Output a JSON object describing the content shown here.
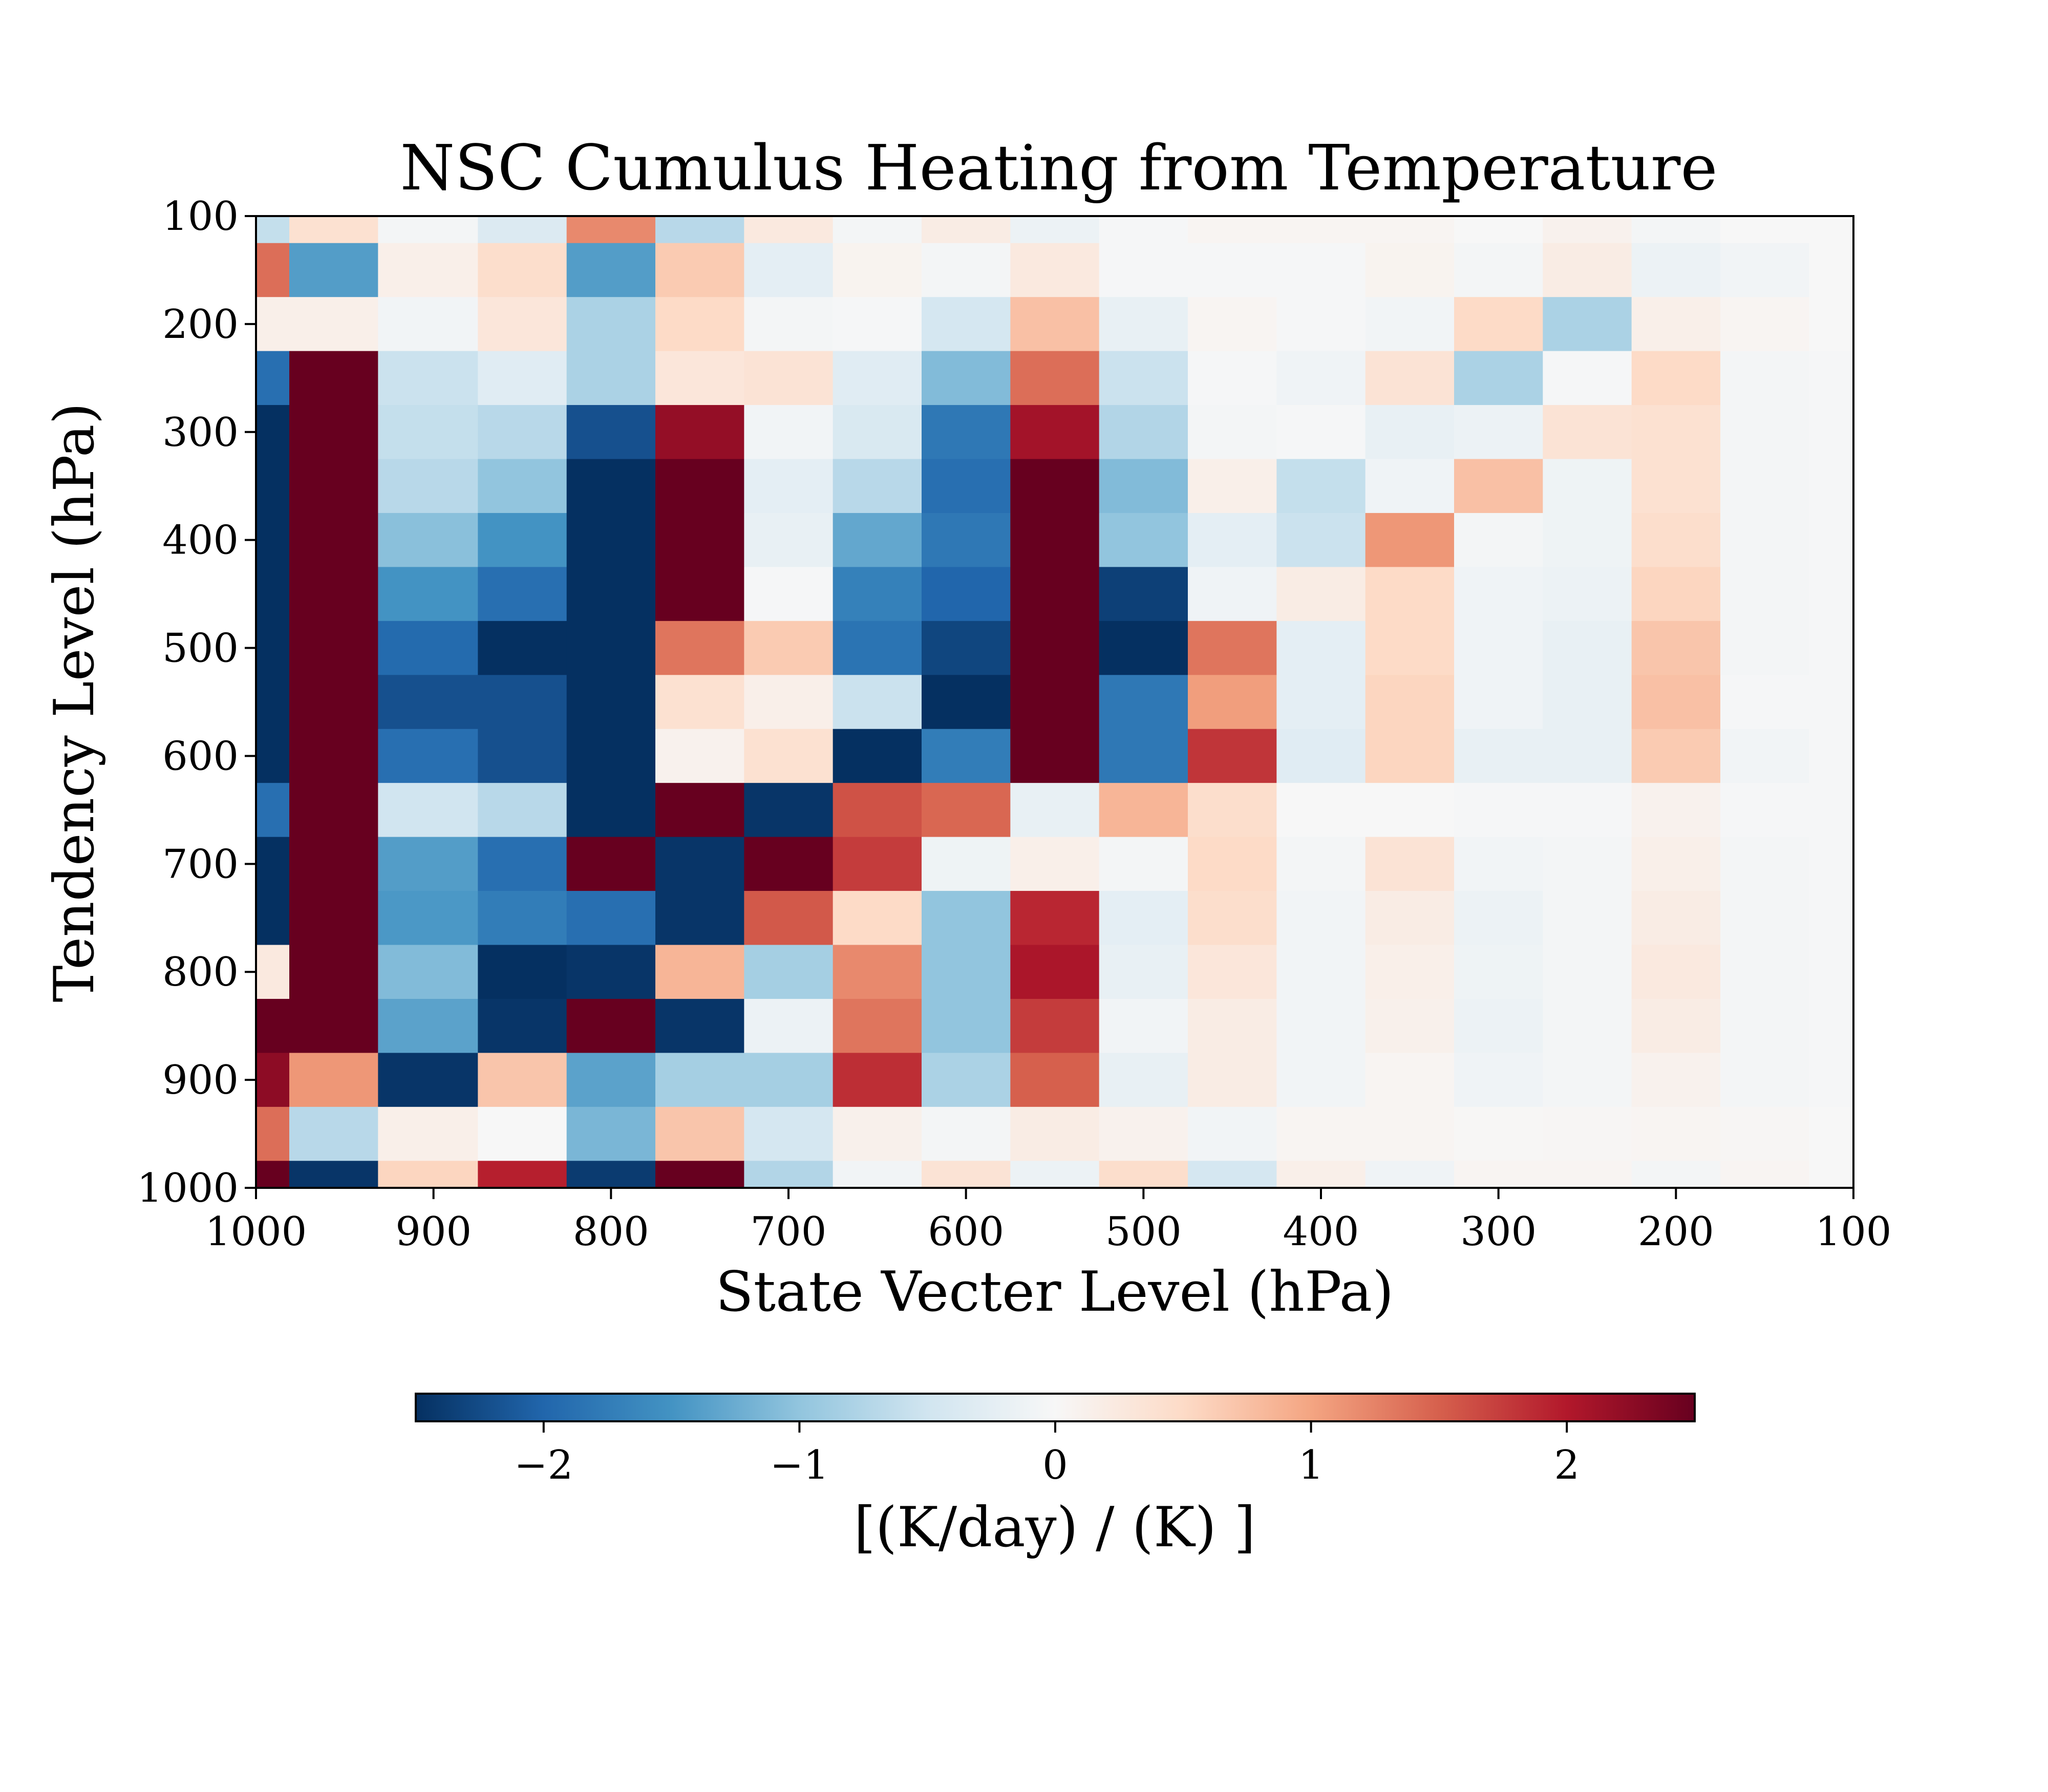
{
  "chart_data": {
    "type": "heatmap",
    "title": "NSC Cumulus Heating from Temperature",
    "xlabel": "State Vecter Level (hPa)",
    "ylabel": "Tendency Level (hPa)",
    "x_ticks": [
      "1000",
      "900",
      "800",
      "700",
      "600",
      "500",
      "400",
      "300",
      "200",
      "100"
    ],
    "y_ticks": [
      "100",
      "200",
      "300",
      "400",
      "500",
      "600",
      "700",
      "800",
      "900",
      "1000"
    ],
    "x_range": [
      1000,
      100
    ],
    "y_range": [
      100,
      1000
    ],
    "x_centers": [
      1000,
      962.5,
      900,
      850,
      800,
      750,
      700,
      650,
      600,
      550,
      500,
      450,
      400,
      350,
      300,
      250,
      200,
      150,
      100
    ],
    "y_centers": [
      100,
      150,
      200,
      250,
      300,
      350,
      400,
      450,
      500,
      550,
      600,
      650,
      700,
      750,
      800,
      850,
      900,
      950,
      1000
    ],
    "values": [
      [
        -0.6,
        0.4,
        -0.05,
        -0.35,
        1.2,
        -0.7,
        0.25,
        -0.05,
        0.2,
        -0.15,
        -0.02,
        0.05,
        0.05,
        0.05,
        0.0,
        0.1,
        -0.05,
        0.0,
        0.0
      ],
      [
        1.4,
        -1.4,
        0.15,
        0.45,
        -1.4,
        0.65,
        -0.25,
        0.08,
        -0.05,
        0.25,
        -0.02,
        -0.03,
        -0.03,
        0.08,
        -0.05,
        0.2,
        -0.15,
        -0.08,
        0.0
      ],
      [
        0.15,
        0.15,
        -0.08,
        0.3,
        -0.8,
        0.5,
        -0.05,
        -0.03,
        -0.45,
        0.75,
        -0.2,
        0.05,
        -0.03,
        -0.08,
        0.5,
        -0.8,
        0.15,
        0.05,
        0.0
      ],
      [
        -1.9,
        2.5,
        -0.55,
        -0.3,
        -0.8,
        0.3,
        0.35,
        -0.3,
        -1.1,
        1.4,
        -0.55,
        -0.03,
        -0.1,
        0.35,
        -0.8,
        -0.03,
        0.5,
        -0.05,
        -0.02
      ],
      [
        -2.5,
        2.5,
        -0.6,
        -0.7,
        -2.2,
        2.2,
        -0.08,
        -0.4,
        -1.8,
        2.1,
        -0.75,
        -0.05,
        -0.03,
        -0.2,
        -0.15,
        0.35,
        0.4,
        -0.05,
        -0.02
      ],
      [
        -2.5,
        2.5,
        -0.7,
        -1.0,
        -2.5,
        2.5,
        -0.25,
        -0.7,
        -1.9,
        2.5,
        -1.1,
        0.15,
        -0.6,
        -0.1,
        0.75,
        -0.12,
        0.4,
        -0.05,
        -0.02
      ],
      [
        -2.5,
        2.5,
        -1.05,
        -1.5,
        -2.5,
        2.5,
        -0.2,
        -1.3,
        -1.8,
        2.5,
        -1.0,
        -0.25,
        -0.55,
        1.1,
        -0.05,
        -0.12,
        0.45,
        -0.05,
        -0.02
      ],
      [
        -2.5,
        2.5,
        -1.5,
        -1.9,
        -2.5,
        2.5,
        -0.02,
        -1.7,
        -2.0,
        2.5,
        -2.35,
        -0.1,
        0.2,
        0.5,
        -0.1,
        -0.15,
        0.55,
        -0.05,
        -0.02
      ],
      [
        -2.5,
        2.5,
        -1.95,
        -2.5,
        -2.5,
        1.35,
        0.65,
        -1.85,
        -2.3,
        2.5,
        -2.5,
        1.35,
        -0.25,
        0.5,
        -0.1,
        -0.2,
        0.7,
        -0.05,
        -0.02
      ],
      [
        -2.5,
        2.5,
        -2.2,
        -2.2,
        -2.5,
        0.4,
        0.15,
        -0.55,
        -2.5,
        2.5,
        -1.8,
        1.05,
        -0.25,
        0.55,
        -0.1,
        -0.2,
        0.75,
        -0.03,
        -0.02
      ],
      [
        -2.5,
        2.5,
        -1.9,
        -2.2,
        -2.5,
        0.1,
        0.4,
        -2.5,
        -1.75,
        2.5,
        -1.8,
        1.8,
        -0.3,
        0.55,
        -0.2,
        -0.2,
        0.65,
        -0.08,
        -0.02
      ],
      [
        -1.9,
        2.5,
        -0.5,
        -0.7,
        -2.5,
        2.5,
        -2.45,
        1.6,
        1.45,
        -0.2,
        0.85,
        0.45,
        0.0,
        0.0,
        -0.03,
        -0.02,
        0.1,
        -0.03,
        -0.02
      ],
      [
        -2.5,
        2.5,
        -1.4,
        -1.9,
        2.5,
        -2.45,
        2.5,
        1.75,
        -0.12,
        0.15,
        -0.05,
        0.5,
        -0.05,
        0.35,
        -0.08,
        -0.05,
        0.15,
        -0.05,
        -0.02
      ],
      [
        -2.5,
        2.5,
        -1.45,
        -1.75,
        -1.9,
        -2.45,
        1.55,
        0.5,
        -1.0,
        1.9,
        -0.25,
        0.45,
        -0.08,
        0.2,
        -0.15,
        -0.05,
        0.2,
        -0.05,
        -0.02
      ],
      [
        0.25,
        2.5,
        -1.1,
        -2.5,
        -2.45,
        0.85,
        -0.85,
        1.2,
        -1.0,
        2.05,
        -0.2,
        0.3,
        -0.08,
        0.15,
        -0.12,
        -0.05,
        0.25,
        -0.05,
        -0.02
      ],
      [
        2.5,
        2.5,
        -1.35,
        -2.45,
        2.5,
        -2.45,
        -0.15,
        1.35,
        -1.0,
        1.75,
        -0.08,
        0.2,
        -0.08,
        0.12,
        -0.15,
        -0.05,
        0.2,
        -0.05,
        -0.02
      ],
      [
        2.25,
        1.1,
        -2.45,
        0.7,
        -1.35,
        -0.85,
        -0.85,
        1.85,
        -0.8,
        1.5,
        -0.2,
        0.2,
        -0.08,
        0.05,
        -0.1,
        -0.05,
        0.1,
        -0.05,
        -0.02
      ],
      [
        1.4,
        -0.7,
        0.15,
        0.0,
        -1.15,
        0.7,
        -0.45,
        0.12,
        -0.05,
        0.2,
        0.1,
        -0.08,
        0.05,
        0.05,
        0.02,
        0.03,
        0.05,
        0.03,
        0.0
      ],
      [
        2.5,
        -2.45,
        0.55,
        1.95,
        -2.4,
        2.5,
        -0.75,
        -0.08,
        0.35,
        -0.15,
        0.45,
        -0.45,
        0.15,
        -0.1,
        0.05,
        0.05,
        -0.05,
        0.05,
        0.0
      ]
    ],
    "vmin": -2.5,
    "vmax": 2.5,
    "colormap": "RdBu_r",
    "grid": false,
    "colorbar": {
      "orientation": "horizontal",
      "placement": "bottom",
      "ticks": [
        "−2",
        "−1",
        "0",
        "1",
        "2"
      ],
      "tick_values": [
        -2,
        -1,
        0,
        1,
        2
      ],
      "label": "[(K/day) / (K) ]"
    }
  }
}
